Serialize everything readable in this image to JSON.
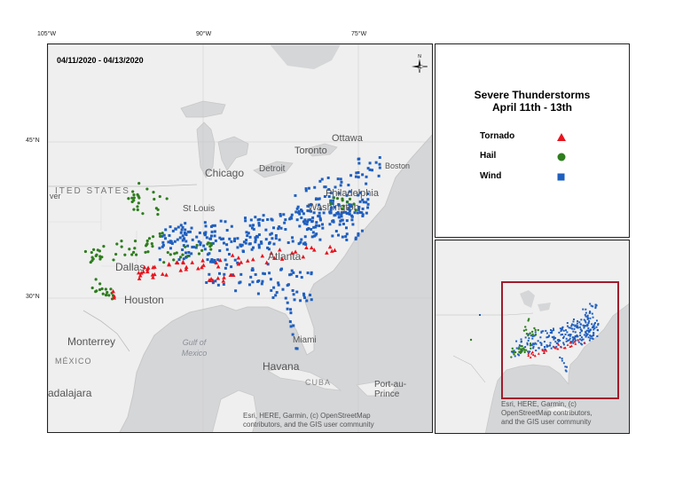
{
  "lon_ticks": [
    "105°W",
    "90°W",
    "75°W"
  ],
  "lat_ticks": [
    "45°N",
    "30°N"
  ],
  "main_map": {
    "date_range": "04/11/2020 - 04/13/2020",
    "cities": {
      "ottawa": "Ottawa",
      "toronto": "Toronto",
      "boston": "Boston",
      "detroit": "Detroit",
      "chicago": "Chicago",
      "philadelphia": "Philadelphia",
      "washington": "Washington",
      "st_louis": "St Louis",
      "dallas": "Dallas",
      "atlanta": "Atlanta",
      "houston": "Houston",
      "monterrey": "Monterrey",
      "miami": "Miami",
      "havana": "Havana",
      "guadalajara": "adalajara",
      "port_au_prince": "Port-au-\nPrince",
      "denver": "ver"
    },
    "regions": {
      "united_states": "ITED STATES",
      "mexico": "MÉXICO",
      "cuba": "CUBA",
      "gulf": "Gulf of\nMexico"
    },
    "attribution": "Esri, HERE, Garmin, (c) OpenStreetMap\ncontributors, and the GIS user community"
  },
  "legend": {
    "title_line1": "Severe Thunderstorms",
    "title_line2": "April 11th - 13th",
    "items": [
      {
        "label": "Tornado",
        "symbol": "triangle",
        "color": "#e8141e"
      },
      {
        "label": "Hail",
        "symbol": "circle",
        "color": "#2e7d1e"
      },
      {
        "label": "Wind",
        "symbol": "square",
        "color": "#1f5fbf"
      }
    ]
  },
  "inset_map": {
    "attribution": "Esri, HERE, Garmin, (c)\nOpenStreetMap contributors,\nand the GIS user community",
    "extent_box_color": "#a01c2c"
  }
}
